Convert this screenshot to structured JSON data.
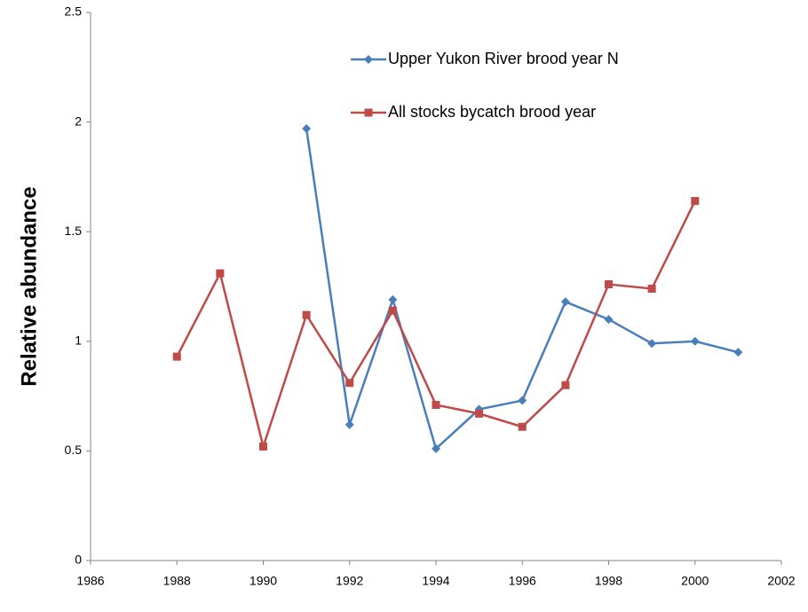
{
  "chart_data": {
    "type": "line",
    "y_label": "Relative abundance",
    "x": [
      1988,
      1989,
      1990,
      1991,
      1992,
      1993,
      1994,
      1995,
      1996,
      1997,
      1998,
      1999,
      2000,
      2001
    ],
    "series": [
      {
        "name": "Upper Yukon River brood year N",
        "color": "#4a7ebb",
        "marker": "diamond",
        "values": [
          null,
          null,
          null,
          1.97,
          0.62,
          1.19,
          0.51,
          0.69,
          0.73,
          1.18,
          1.1,
          0.99,
          1.0,
          0.95
        ]
      },
      {
        "name": "All stocks bycatch brood year",
        "color": "#be4b48",
        "marker": "square",
        "values": [
          0.93,
          1.31,
          0.52,
          1.12,
          0.81,
          1.14,
          0.71,
          0.67,
          0.61,
          0.8,
          1.26,
          1.24,
          1.64,
          null
        ]
      }
    ],
    "xlim": [
      1986,
      2002
    ],
    "xticks": [
      1986,
      1988,
      1990,
      1992,
      1994,
      1996,
      1998,
      2000,
      2002
    ],
    "ylim": [
      0,
      2.5
    ],
    "yticks": [
      0,
      0.5,
      1,
      1.5,
      2,
      2.5
    ],
    "grid": false,
    "legend": "top-right"
  }
}
